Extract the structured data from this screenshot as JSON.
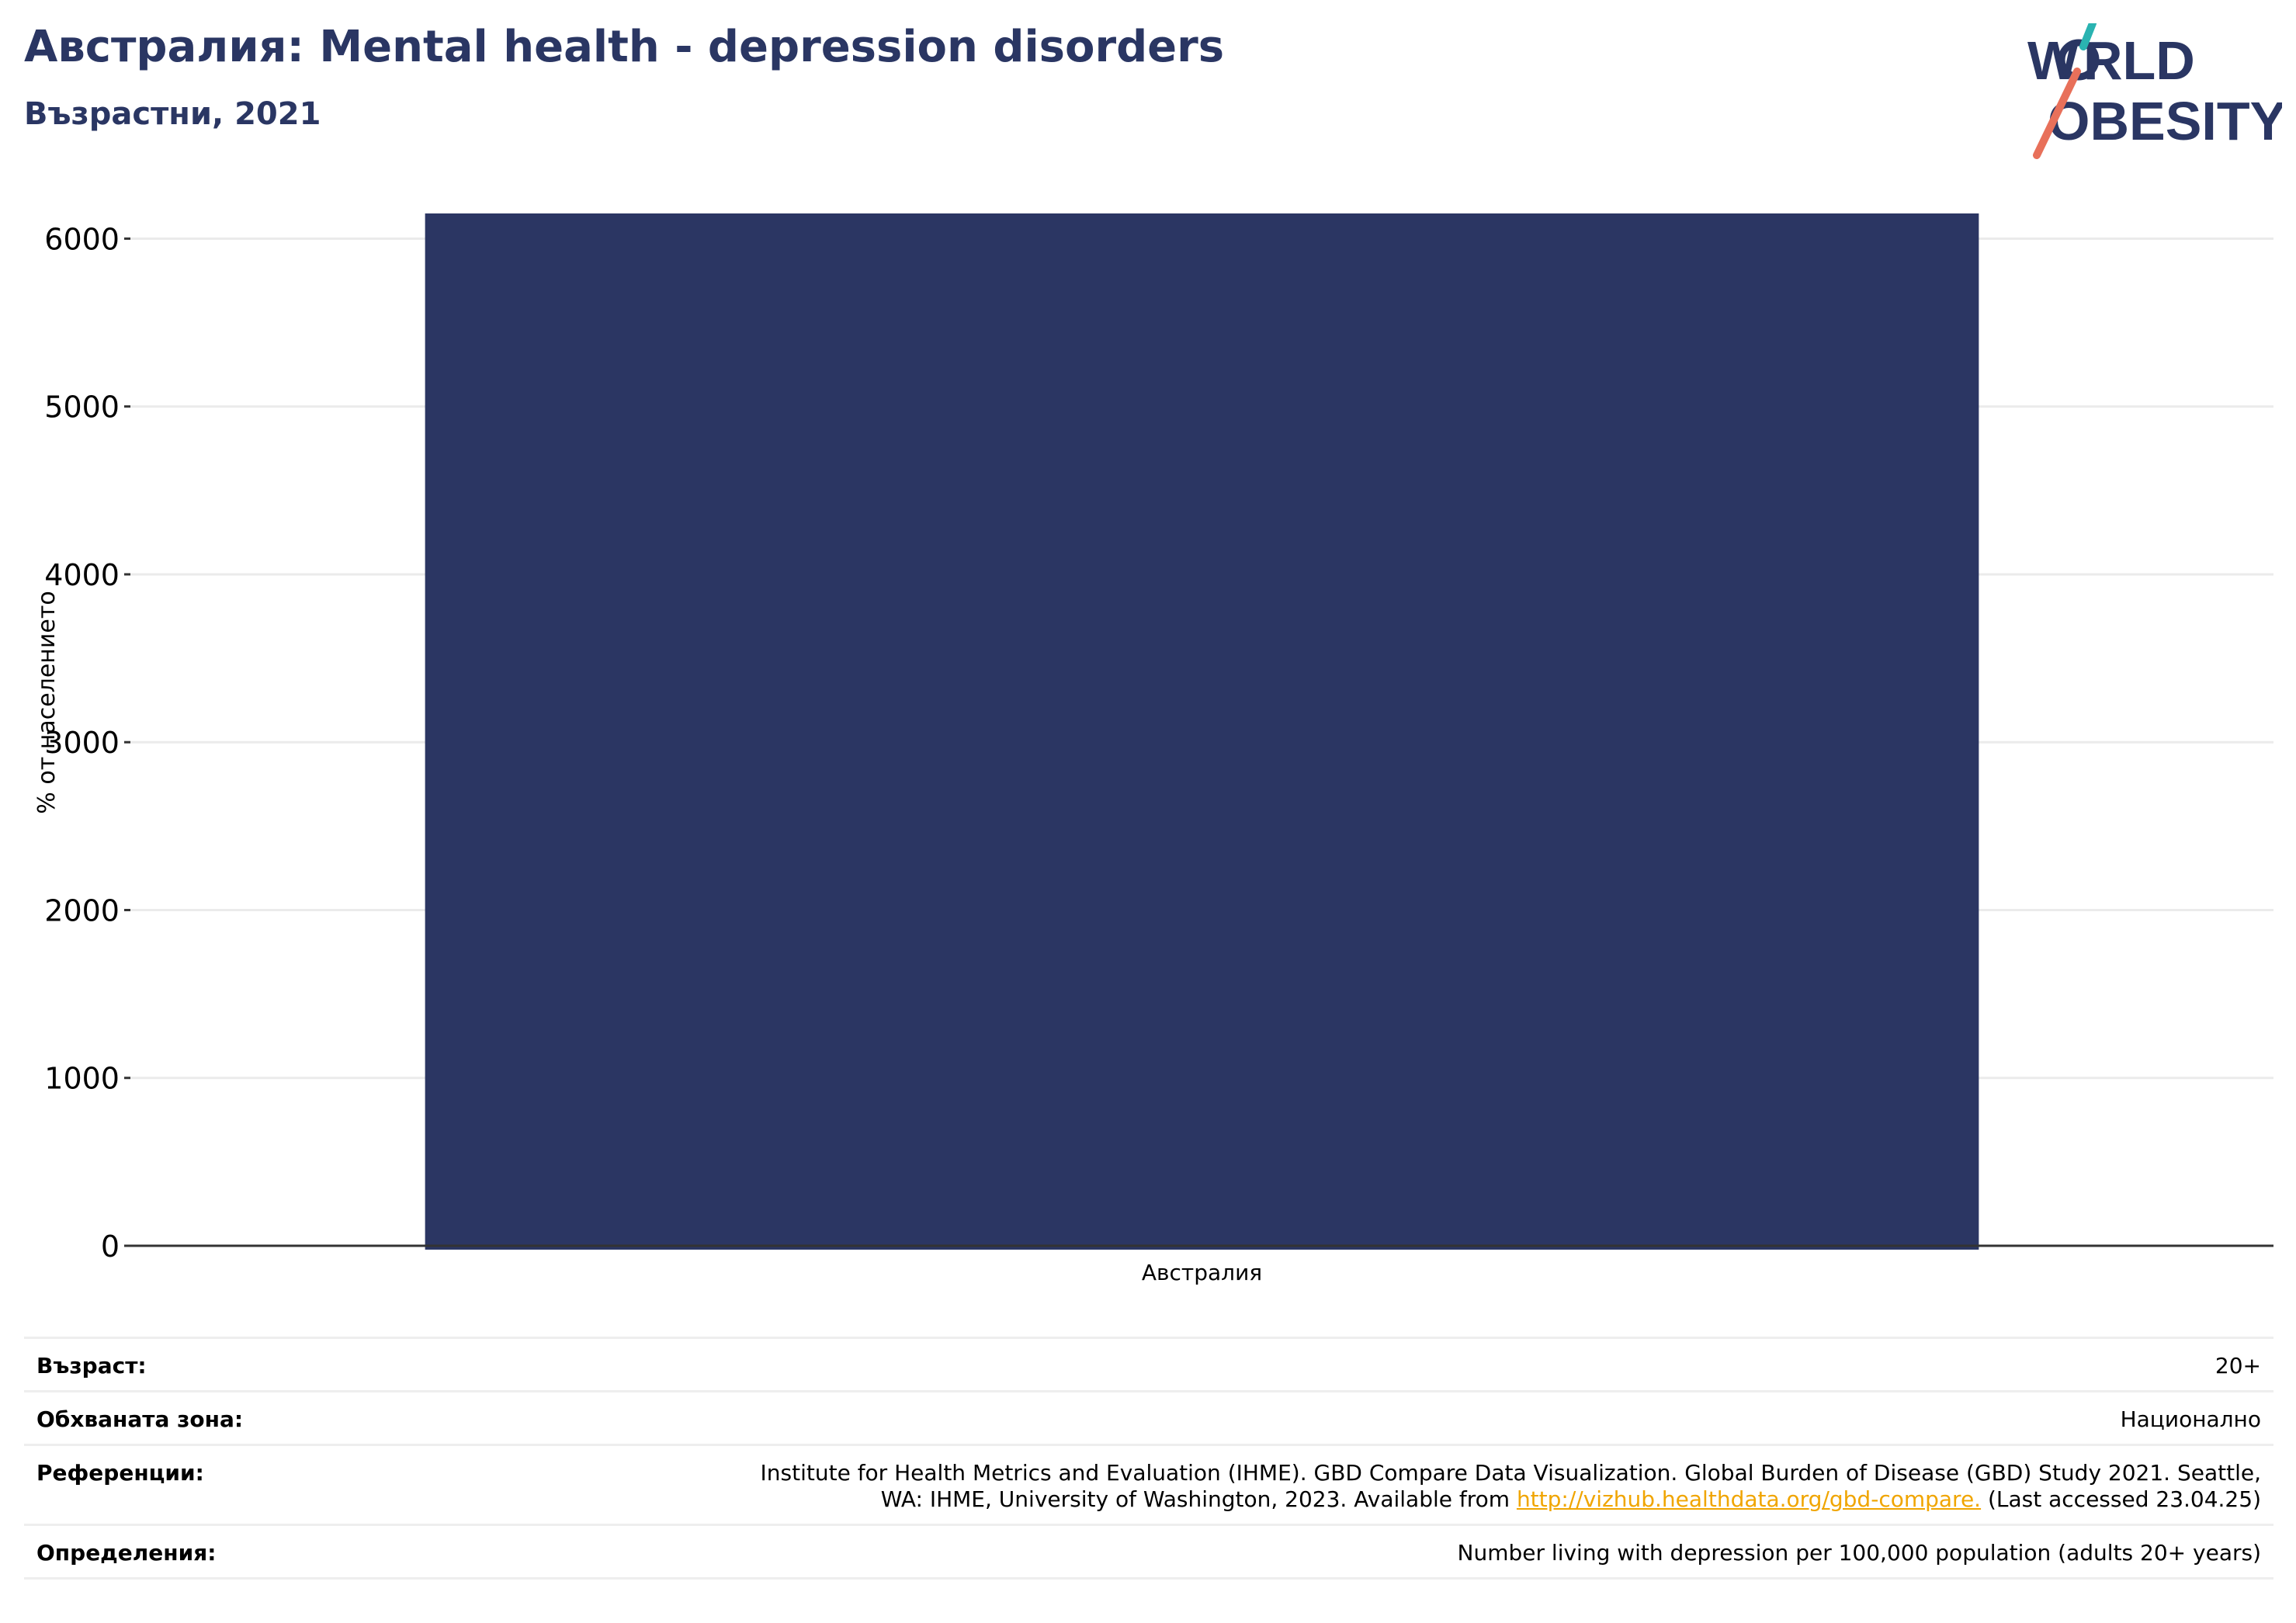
{
  "header": {
    "title": "Австралия: Mental health - depression disorders",
    "subtitle": "Възрастни, 2021",
    "logo_text": "WORLD OBESITY"
  },
  "colors": {
    "title": "#2a3663",
    "bar": "#2b3663",
    "gridline": "#ebebeb",
    "baseline": "#333333",
    "link": "#f0a500",
    "logo_teal": "#2ab3b1",
    "logo_coral": "#e8705a"
  },
  "chart_data": {
    "type": "bar",
    "categories": [
      "Австралия"
    ],
    "values": [
      6150
    ],
    "ylabel": "% от населението",
    "ylim": [
      0,
      6150
    ],
    "yticks": [
      0,
      1000,
      2000,
      3000,
      4000,
      5000,
      6000
    ],
    "grid": true,
    "legend": "none"
  },
  "info": {
    "age_label": "Възраст:",
    "age_value": "20+",
    "coverage_label": "Обхваната зона:",
    "coverage_value": "Национално",
    "references_label": "Референции:",
    "references_line1": "Institute for Health Metrics and Evaluation (IHME). GBD Compare Data Visualization. Global Burden of Disease (GBD) Study 2021. Seattle,",
    "references_line2_pre": "WA: IHME, University of Washington, 2023. Available from ",
    "references_link": "http://vizhub.healthdata.org/gbd-compare.",
    "references_line2_post": " (Last accessed 23.04.25)",
    "definitions_label": "Определения:",
    "definitions_value": "Number living with depression per 100,000 population (adults 20+ years)"
  }
}
